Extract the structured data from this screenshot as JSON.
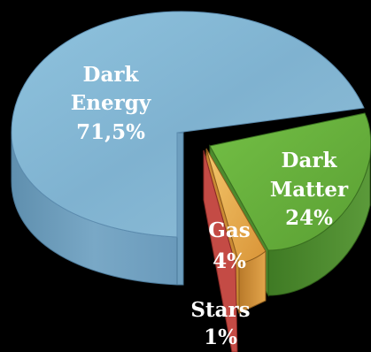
{
  "chart_data": {
    "type": "pie",
    "style": "3d-exploded",
    "title": "",
    "slices": [
      {
        "label_line1": "Dark",
        "label_line2": "Energy",
        "value_text": "71,5%",
        "value": 71.5,
        "color": "#86b9d6"
      },
      {
        "label_line1": "Dark",
        "label_line2": "Matter",
        "value_text": "24%",
        "value": 24,
        "color": "#5aa83c"
      },
      {
        "label_line1": "Gas",
        "label_line2": "",
        "value_text": "4%",
        "value": 4,
        "color": "#e6a84a"
      },
      {
        "label_line1": "Stars",
        "label_line2": "",
        "value_text": "1%",
        "value": 1,
        "color": "#d9534f"
      }
    ]
  }
}
